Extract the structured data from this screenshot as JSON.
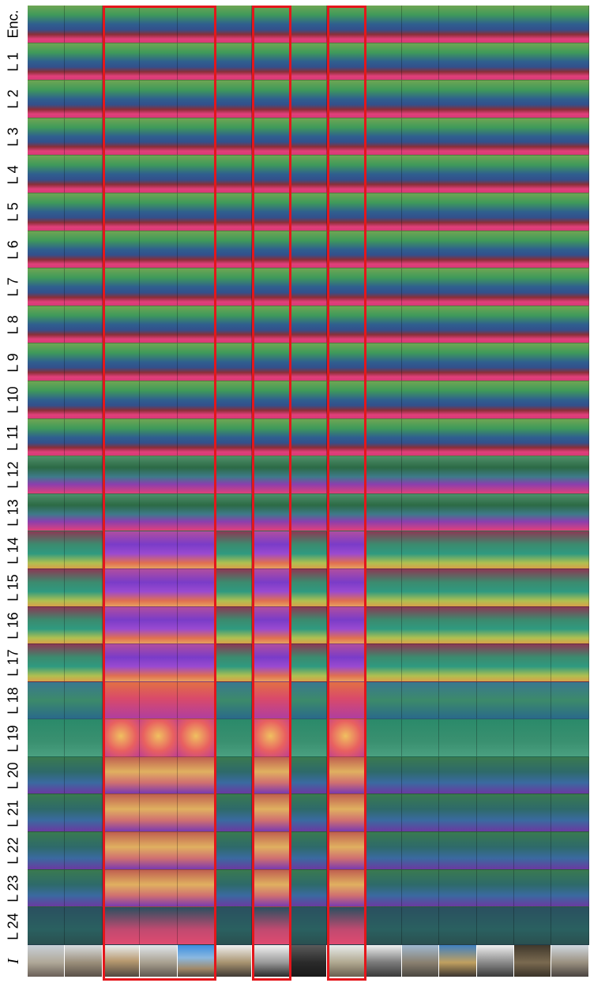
{
  "row_labels": [
    "Enc.",
    "L 1",
    "L 2",
    "L 3",
    "L 4",
    "L 5",
    "L 6",
    "L 7",
    "L 8",
    "L 9",
    "L 10",
    "L 11",
    "L 12",
    "L 13",
    "L 14",
    "L 15",
    "L 16",
    "L 17",
    "L 18",
    "L 19",
    "L 20",
    "L 21",
    "L 22",
    "L 23",
    "L 24"
  ],
  "image_row_label": "I",
  "num_columns": 15,
  "highlight_color": "#e4161b",
  "highlighted_column_groups": [
    [
      2,
      4
    ],
    [
      6,
      6
    ],
    [
      8,
      8
    ]
  ]
}
